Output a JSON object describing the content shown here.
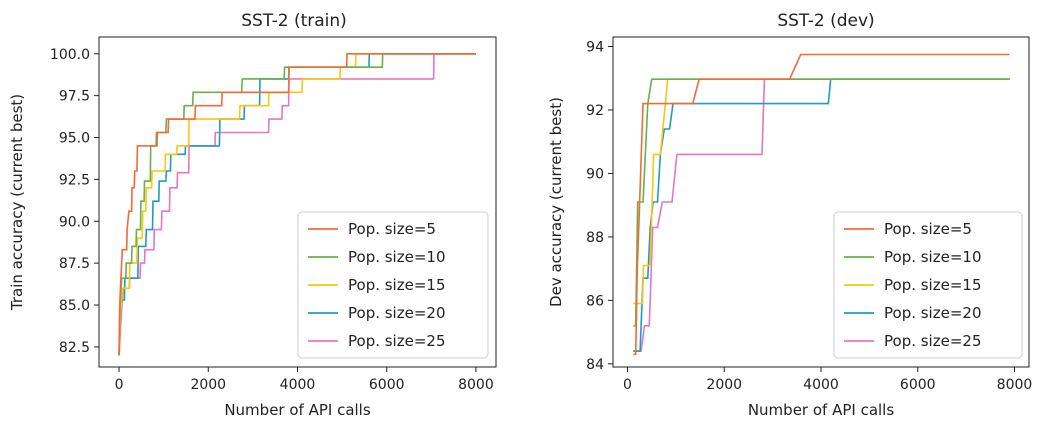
{
  "chart_data": [
    {
      "type": "line",
      "title": "SST-2 (train)",
      "xlabel": "Number of API calls",
      "ylabel": "Train accuracy (current best)",
      "xlim": [
        -450,
        8450
      ],
      "ylim": [
        81.3,
        101.0
      ],
      "xticks": [
        "0",
        "2000",
        "4000",
        "6000",
        "8000"
      ],
      "xtick_values": [
        0,
        2000,
        4000,
        6000,
        8000
      ],
      "yticks": [
        "82.5",
        "85.0",
        "87.5",
        "90.0",
        "92.5",
        "95.0",
        "97.5",
        "100.0"
      ],
      "ytick_values": [
        82.5,
        85.0,
        87.5,
        90.0,
        92.5,
        95.0,
        97.5,
        100.0
      ],
      "legend_position": "lower right",
      "series": [
        {
          "name": "Pop. size=5",
          "color": "#f26b38",
          "points": [
            [
              0,
              82.0
            ],
            [
              10,
              84.5
            ],
            [
              30,
              86.0
            ],
            [
              50,
              87.0
            ],
            [
              70,
              88.3
            ],
            [
              170,
              88.3
            ],
            [
              180,
              89.5
            ],
            [
              220,
              90.6
            ],
            [
              280,
              90.6
            ],
            [
              290,
              92.0
            ],
            [
              340,
              92.0
            ],
            [
              350,
              93.0
            ],
            [
              400,
              93.0
            ],
            [
              410,
              94.5
            ],
            [
              830,
              94.5
            ],
            [
              840,
              95.3
            ],
            [
              1100,
              95.3
            ],
            [
              1110,
              96.1
            ],
            [
              1700,
              96.1
            ],
            [
              1710,
              96.9
            ],
            [
              2300,
              96.9
            ],
            [
              2310,
              97.7
            ],
            [
              3800,
              97.7
            ],
            [
              3810,
              99.2
            ],
            [
              5100,
              99.2
            ],
            [
              5110,
              100.0
            ],
            [
              8000,
              100.0
            ]
          ]
        },
        {
          "name": "Pop. size=10",
          "color": "#6ab04c",
          "points": [
            [
              0,
              82.0
            ],
            [
              20,
              85.0
            ],
            [
              60,
              86.6
            ],
            [
              150,
              86.6
            ],
            [
              160,
              87.5
            ],
            [
              280,
              87.5
            ],
            [
              290,
              88.5
            ],
            [
              380,
              88.5
            ],
            [
              390,
              89.5
            ],
            [
              480,
              89.5
            ],
            [
              490,
              91.2
            ],
            [
              560,
              91.2
            ],
            [
              570,
              92.4
            ],
            [
              700,
              92.4
            ],
            [
              710,
              94.5
            ],
            [
              850,
              94.5
            ],
            [
              860,
              95.3
            ],
            [
              1050,
              95.3
            ],
            [
              1060,
              96.1
            ],
            [
              1450,
              96.1
            ],
            [
              1460,
              96.9
            ],
            [
              1650,
              96.9
            ],
            [
              1660,
              97.7
            ],
            [
              2750,
              97.7
            ],
            [
              2760,
              98.5
            ],
            [
              3700,
              98.5
            ],
            [
              3710,
              99.2
            ],
            [
              5900,
              99.2
            ],
            [
              5910,
              100.0
            ],
            [
              8000,
              100.0
            ]
          ]
        },
        {
          "name": "Pop. size=15",
          "color": "#f9c80e",
          "points": [
            [
              0,
              82.0
            ],
            [
              30,
              84.5
            ],
            [
              80,
              86.0
            ],
            [
              230,
              86.0
            ],
            [
              240,
              87.5
            ],
            [
              400,
              87.5
            ],
            [
              410,
              89.0
            ],
            [
              520,
              89.0
            ],
            [
              530,
              90.6
            ],
            [
              600,
              90.6
            ],
            [
              610,
              92.0
            ],
            [
              730,
              92.0
            ],
            [
              740,
              93.0
            ],
            [
              1030,
              93.0
            ],
            [
              1040,
              94.0
            ],
            [
              1290,
              94.0
            ],
            [
              1300,
              94.5
            ],
            [
              1560,
              94.5
            ],
            [
              1570,
              96.1
            ],
            [
              2700,
              96.1
            ],
            [
              2710,
              96.9
            ],
            [
              3350,
              96.9
            ],
            [
              3360,
              97.7
            ],
            [
              4100,
              97.7
            ],
            [
              4110,
              98.5
            ],
            [
              4950,
              98.5
            ],
            [
              4960,
              99.2
            ],
            [
              5300,
              99.2
            ],
            [
              5310,
              100.0
            ],
            [
              8000,
              100.0
            ]
          ]
        },
        {
          "name": "Pop. size=20",
          "color": "#1f9bc4",
          "points": [
            [
              0,
              82.0
            ],
            [
              20,
              84.5
            ],
            [
              60,
              85.3
            ],
            [
              120,
              85.3
            ],
            [
              130,
              86.6
            ],
            [
              420,
              86.6
            ],
            [
              430,
              88.5
            ],
            [
              600,
              88.5
            ],
            [
              610,
              89.5
            ],
            [
              750,
              89.5
            ],
            [
              760,
              91.2
            ],
            [
              890,
              91.2
            ],
            [
              900,
              92.4
            ],
            [
              1050,
              92.4
            ],
            [
              1060,
              93.0
            ],
            [
              1150,
              93.0
            ],
            [
              1160,
              94.0
            ],
            [
              1480,
              94.0
            ],
            [
              1490,
              94.5
            ],
            [
              2250,
              94.5
            ],
            [
              2260,
              96.1
            ],
            [
              2800,
              96.1
            ],
            [
              2810,
              96.9
            ],
            [
              3150,
              96.9
            ],
            [
              3160,
              98.5
            ],
            [
              3800,
              98.5
            ],
            [
              3810,
              99.2
            ],
            [
              5600,
              99.2
            ],
            [
              5610,
              100.0
            ],
            [
              8000,
              100.0
            ]
          ]
        },
        {
          "name": "Pop. size=25",
          "color": "#e377c2",
          "points": [
            [
              0,
              82.0
            ],
            [
              40,
              84.0
            ],
            [
              90,
              86.0
            ],
            [
              230,
              86.0
            ],
            [
              240,
              86.6
            ],
            [
              470,
              86.6
            ],
            [
              480,
              87.5
            ],
            [
              570,
              87.5
            ],
            [
              580,
              88.3
            ],
            [
              780,
              88.3
            ],
            [
              790,
              89.5
            ],
            [
              950,
              89.5
            ],
            [
              960,
              90.6
            ],
            [
              1130,
              90.6
            ],
            [
              1140,
              92.0
            ],
            [
              1300,
              92.0
            ],
            [
              1310,
              92.9
            ],
            [
              1560,
              92.9
            ],
            [
              1570,
              94.5
            ],
            [
              2150,
              94.5
            ],
            [
              2160,
              95.3
            ],
            [
              3350,
              95.3
            ],
            [
              3360,
              96.1
            ],
            [
              3650,
              96.1
            ],
            [
              3660,
              96.9
            ],
            [
              3800,
              96.9
            ],
            [
              3810,
              98.5
            ],
            [
              7050,
              98.5
            ],
            [
              7060,
              100.0
            ],
            [
              8000,
              100.0
            ]
          ]
        }
      ]
    },
    {
      "type": "line",
      "title": "SST-2 (dev)",
      "xlabel": "Number of API calls",
      "ylabel": "Dev accuracy (current best)",
      "xlim": [
        -300,
        8300
      ],
      "ylim": [
        83.9,
        94.3
      ],
      "xticks": [
        "0",
        "2000",
        "4000",
        "6000",
        "8000"
      ],
      "xtick_values": [
        0,
        2000,
        4000,
        6000,
        8000
      ],
      "yticks": [
        "84",
        "86",
        "88",
        "90",
        "92",
        "94"
      ],
      "ytick_values": [
        84,
        86,
        88,
        90,
        92,
        94
      ],
      "legend_position": "lower right",
      "series": [
        {
          "name": "Pop. size=5",
          "color": "#f26b38",
          "points": [
            [
              120,
              84.3
            ],
            [
              170,
              84.3
            ],
            [
              200,
              86.9
            ],
            [
              260,
              89.5
            ],
            [
              320,
              92.2
            ],
            [
              1350,
              92.2
            ],
            [
              1480,
              92.97
            ],
            [
              3350,
              92.97
            ],
            [
              3580,
              93.75
            ],
            [
              7900,
              93.75
            ]
          ]
        },
        {
          "name": "Pop. size=10",
          "color": "#6ab04c",
          "points": [
            [
              120,
              85.2
            ],
            [
              170,
              85.2
            ],
            [
              210,
              89.1
            ],
            [
              320,
              89.1
            ],
            [
              420,
              92.2
            ],
            [
              500,
              92.97
            ],
            [
              7900,
              92.97
            ]
          ]
        },
        {
          "name": "Pop. size=15",
          "color": "#f9c80e",
          "points": [
            [
              120,
              85.9
            ],
            [
              310,
              85.9
            ],
            [
              330,
              87.1
            ],
            [
              470,
              87.1
            ],
            [
              540,
              90.6
            ],
            [
              680,
              90.6
            ],
            [
              830,
              92.97
            ],
            [
              7900,
              92.97
            ]
          ]
        },
        {
          "name": "Pop. size=20",
          "color": "#1f9bc4",
          "points": [
            [
              120,
              84.4
            ],
            [
              260,
              84.4
            ],
            [
              320,
              86.7
            ],
            [
              420,
              86.7
            ],
            [
              470,
              88.3
            ],
            [
              530,
              89.1
            ],
            [
              620,
              89.1
            ],
            [
              680,
              90.6
            ],
            [
              760,
              91.4
            ],
            [
              870,
              91.4
            ],
            [
              940,
              92.2
            ],
            [
              4150,
              92.2
            ],
            [
              4200,
              92.97
            ],
            [
              7900,
              92.97
            ]
          ]
        },
        {
          "name": "Pop. size=25",
          "color": "#e377c2",
          "points": [
            [
              120,
              84.4
            ],
            [
              280,
              84.4
            ],
            [
              350,
              85.2
            ],
            [
              450,
              85.2
            ],
            [
              520,
              88.3
            ],
            [
              620,
              88.3
            ],
            [
              720,
              89.1
            ],
            [
              920,
              89.1
            ],
            [
              1020,
              90.6
            ],
            [
              2780,
              90.6
            ],
            [
              2830,
              92.97
            ],
            [
              7900,
              92.97
            ]
          ]
        }
      ]
    }
  ]
}
